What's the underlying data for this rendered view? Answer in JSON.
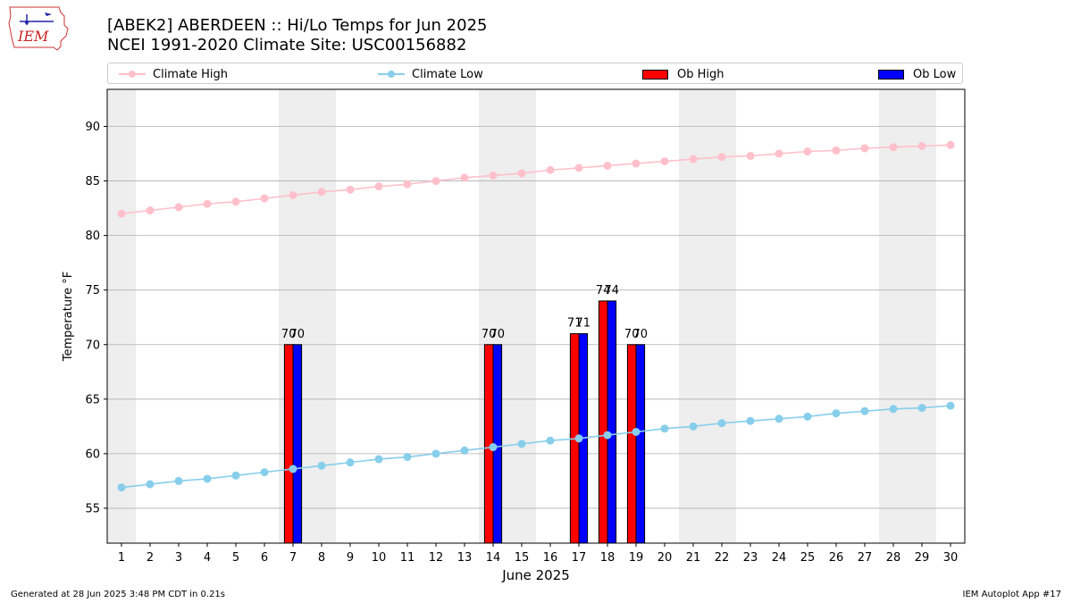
{
  "header": {
    "logo_text": "IEM",
    "title_line1": "[ABEK2] ABERDEEN :: Hi/Lo Temps for Jun 2025",
    "title_line2": "NCEI 1991-2020 Climate Site: USC00156882"
  },
  "legend": {
    "climate_high": "Climate High",
    "climate_low": "Climate Low",
    "ob_high": "Ob High",
    "ob_low": "Ob Low"
  },
  "colors": {
    "climate_high": "#ffc0cb",
    "climate_low": "#87ceeb",
    "ob_high": "#ff0000",
    "ob_low": "#0000ff",
    "weekend_shade": "#eeeeee",
    "grid": "#b0b0b0"
  },
  "footer": {
    "left": "Generated at 28 Jun 2025 3:48 PM CDT in 0.21s",
    "right": "IEM Autoplot App #17"
  },
  "chart_data": {
    "type": "bar",
    "xlabel": "June 2025",
    "ylabel": "Temperature °F",
    "xlim": [
      0.5,
      30.5
    ],
    "ylim": [
      51.8,
      93.4
    ],
    "yticks": [
      55,
      60,
      65,
      70,
      75,
      80,
      85,
      90
    ],
    "grid": "horizontal",
    "legend_position": "top",
    "days": [
      1,
      2,
      3,
      4,
      5,
      6,
      7,
      8,
      9,
      10,
      11,
      12,
      13,
      14,
      15,
      16,
      17,
      18,
      19,
      20,
      21,
      22,
      23,
      24,
      25,
      26,
      27,
      28,
      29,
      30
    ],
    "shaded_days": [
      1,
      7,
      8,
      14,
      15,
      21,
      22,
      28,
      29
    ],
    "series": [
      {
        "name": "Climate High",
        "kind": "line",
        "values": [
          82.0,
          82.3,
          82.6,
          82.9,
          83.1,
          83.4,
          83.7,
          84.0,
          84.2,
          84.5,
          84.7,
          85.0,
          85.3,
          85.5,
          85.7,
          86.0,
          86.2,
          86.4,
          86.6,
          86.8,
          87.0,
          87.2,
          87.3,
          87.5,
          87.7,
          87.8,
          88.0,
          88.1,
          88.2,
          88.3
        ]
      },
      {
        "name": "Climate Low",
        "kind": "line",
        "values": [
          56.9,
          57.2,
          57.5,
          57.7,
          58.0,
          58.3,
          58.6,
          58.9,
          59.2,
          59.5,
          59.7,
          60.0,
          60.3,
          60.6,
          60.9,
          61.2,
          61.4,
          61.7,
          62.0,
          62.3,
          62.5,
          62.8,
          63.0,
          63.2,
          63.4,
          63.7,
          63.9,
          64.1,
          64.2,
          64.4
        ]
      },
      {
        "name": "Ob High",
        "kind": "bar",
        "points": [
          {
            "day": 7,
            "value": 70
          },
          {
            "day": 14,
            "value": 70
          },
          {
            "day": 17,
            "value": 71
          },
          {
            "day": 18,
            "value": 74
          },
          {
            "day": 19,
            "value": 70
          }
        ]
      },
      {
        "name": "Ob Low",
        "kind": "bar",
        "points": [
          {
            "day": 7,
            "value": 70
          },
          {
            "day": 14,
            "value": 70
          },
          {
            "day": 17,
            "value": 71
          },
          {
            "day": 18,
            "value": 74
          },
          {
            "day": 19,
            "value": 70
          }
        ]
      }
    ],
    "bar_labels": [
      {
        "day": 7,
        "high": "70",
        "low": "70"
      },
      {
        "day": 14,
        "high": "70",
        "low": "70"
      },
      {
        "day": 17,
        "high": "71",
        "low": "71"
      },
      {
        "day": 18,
        "high": "74",
        "low": "74"
      },
      {
        "day": 19,
        "high": "70",
        "low": "70"
      }
    ]
  }
}
